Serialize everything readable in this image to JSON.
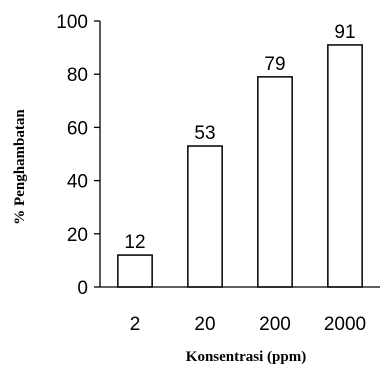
{
  "chart_data": {
    "type": "bar",
    "title": "",
    "xlabel": "Konsentrasi (ppm)",
    "ylabel": "% Penghambatan",
    "categories": [
      "2",
      "20",
      "200",
      "2000"
    ],
    "values": [
      12,
      53,
      79,
      91
    ],
    "data_labels": [
      "12",
      "53",
      "79",
      "91"
    ],
    "ylim": [
      0,
      100
    ],
    "yticks": [
      "0",
      "20",
      "40",
      "60",
      "80",
      "100"
    ],
    "grid": false,
    "legend": "none",
    "colors": {
      "bar_fill": "#ffffff",
      "bar_stroke": "#000000",
      "axis": "#000000"
    }
  }
}
